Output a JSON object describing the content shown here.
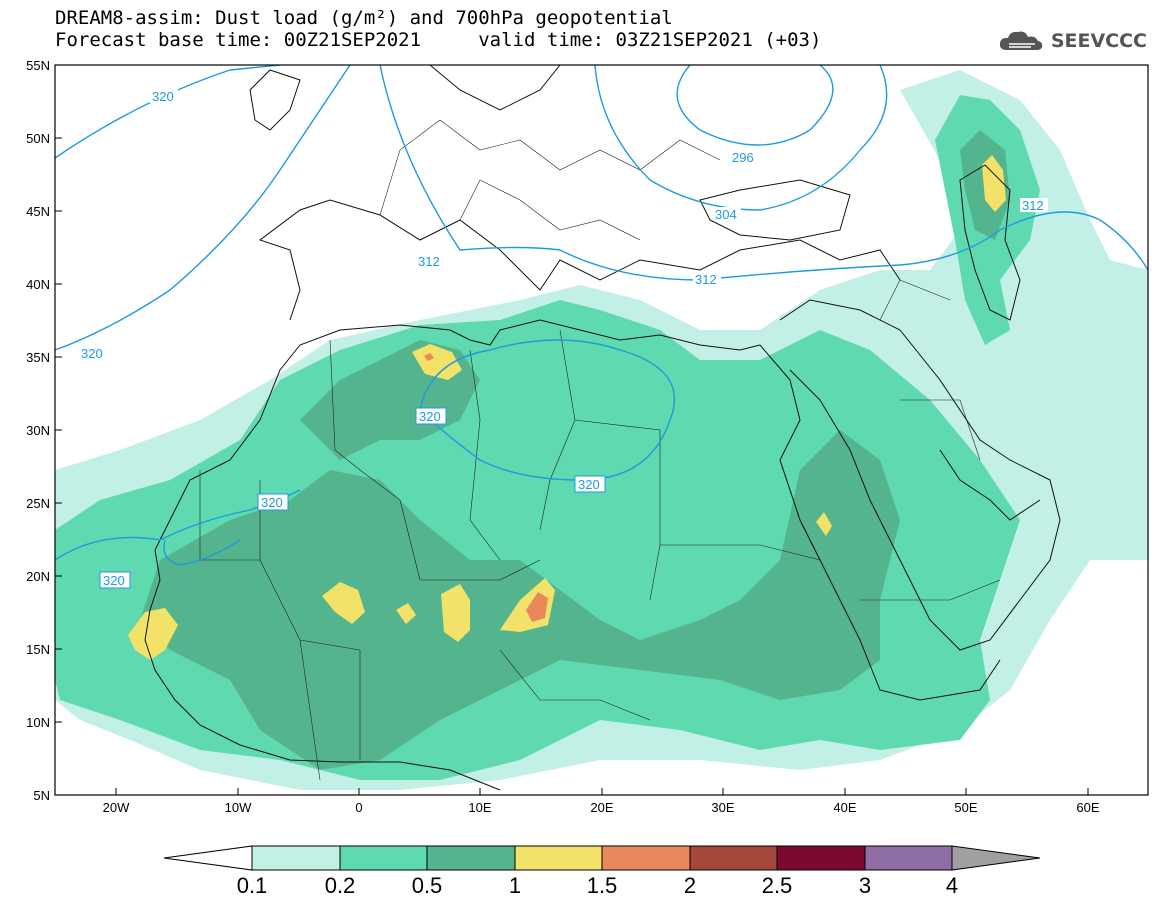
{
  "header": {
    "title_line1": "DREAM8-assim: Dust load (g/m²) and 700hPa geopotential",
    "title_line2": "Forecast base time: 00Z21SEP2021     valid time: 03Z21SEP2021 (+03)",
    "logo_text": "SEEVCCC",
    "logo_icon": "cloud-icon"
  },
  "map": {
    "lon_ticks": [
      "20W",
      "10W",
      "0",
      "10E",
      "20E",
      "30E",
      "40E",
      "50E",
      "60E"
    ],
    "lat_ticks": [
      "55N",
      "50N",
      "45N",
      "40N",
      "35N",
      "30N",
      "25N",
      "20N",
      "15N",
      "10N",
      "5N"
    ],
    "contour_labels": [
      "320",
      "296",
      "304",
      "312",
      "312",
      "312",
      "320",
      "320",
      "320",
      "320",
      "320"
    ],
    "contour_color": "#1e9be0",
    "background_color": "#ffffff"
  },
  "colorbar": {
    "labels": [
      "0.1",
      "0.2",
      "0.5",
      "1",
      "1.5",
      "2",
      "2.5",
      "3",
      "4"
    ],
    "colors": [
      "#c2f0e6",
      "#5fd9b0",
      "#54b48d",
      "#f2e26a",
      "#e8885b",
      "#a5473a",
      "#7c0a2e",
      "#8f6da5"
    ],
    "under_color": "#ffffff",
    "over_color": "#a0a0a0"
  }
}
